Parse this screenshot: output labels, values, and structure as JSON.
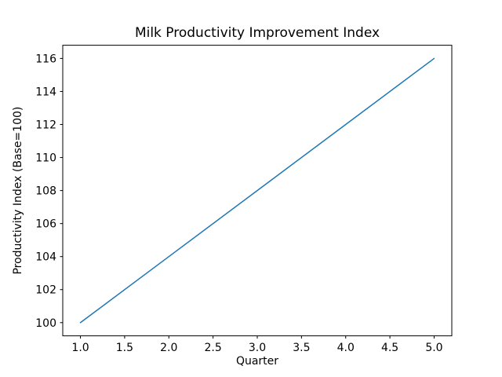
{
  "chart_data": {
    "type": "line",
    "title": "Milk Productivity Improvement Index",
    "xlabel": "Quarter",
    "ylabel": "Productivity Index (Base=100)",
    "x": [
      1,
      2,
      3,
      4,
      5
    ],
    "series": [
      {
        "name": "Productivity Index",
        "values": [
          100,
          104,
          108,
          112,
          116
        ],
        "color": "#1f77b4"
      }
    ],
    "xlim": [
      0.8,
      5.2
    ],
    "ylim": [
      99.2,
      116.8
    ],
    "xticks": [
      1.0,
      1.5,
      2.0,
      2.5,
      3.0,
      3.5,
      4.0,
      4.5,
      5.0
    ],
    "xtick_labels": [
      "1.0",
      "1.5",
      "2.0",
      "2.5",
      "3.0",
      "3.5",
      "4.0",
      "4.5",
      "5.0"
    ],
    "yticks": [
      100,
      102,
      104,
      106,
      108,
      110,
      112,
      114,
      116
    ],
    "ytick_labels": [
      "100",
      "102",
      "104",
      "106",
      "108",
      "110",
      "112",
      "114",
      "116"
    ],
    "grid": false,
    "legend_position": null,
    "frame_color": "#000000",
    "background_color": "#ffffff"
  }
}
